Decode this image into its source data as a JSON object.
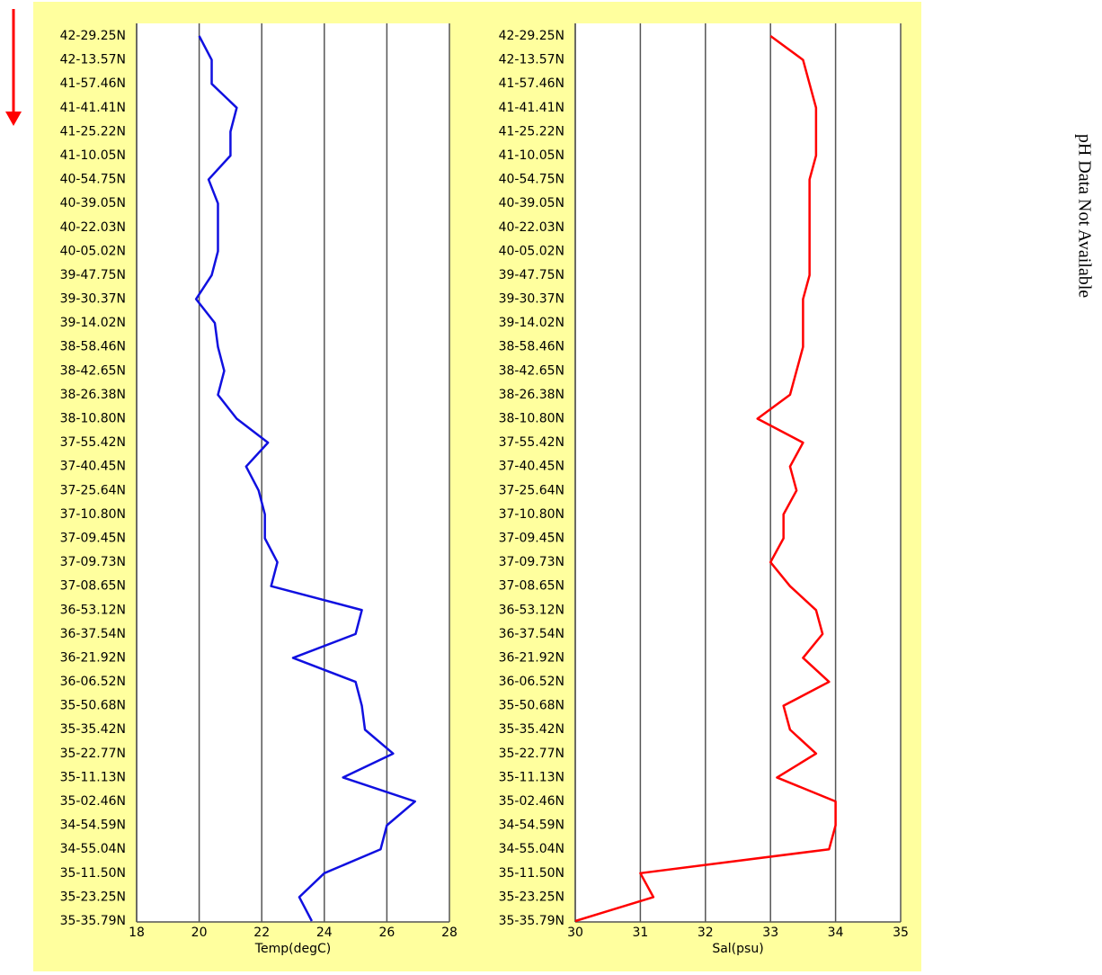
{
  "chart_data": [
    {
      "type": "line",
      "orientation": "horizontal",
      "x_label": "Temp(degC)",
      "color": "#1010e0",
      "categories": [
        "42-29.25N",
        "42-13.57N",
        "41-57.46N",
        "41-41.41N",
        "41-25.22N",
        "41-10.05N",
        "40-54.75N",
        "40-39.05N",
        "40-22.03N",
        "40-05.02N",
        "39-47.75N",
        "39-30.37N",
        "39-14.02N",
        "38-58.46N",
        "38-42.65N",
        "38-26.38N",
        "38-10.80N",
        "37-55.42N",
        "37-40.45N",
        "37-25.64N",
        "37-10.80N",
        "37-09.45N",
        "37-09.73N",
        "37-08.65N",
        "36-53.12N",
        "36-37.54N",
        "36-21.92N",
        "36-06.52N",
        "35-50.68N",
        "35-35.42N",
        "35-22.77N",
        "35-11.13N",
        "35-02.46N",
        "34-54.59N",
        "34-55.04N",
        "35-11.50N",
        "35-23.25N",
        "35-35.79N"
      ],
      "values": [
        20.0,
        20.4,
        20.4,
        21.2,
        21.0,
        21.0,
        20.3,
        20.6,
        20.6,
        20.6,
        20.4,
        19.9,
        20.5,
        20.6,
        20.8,
        20.6,
        21.2,
        22.2,
        21.5,
        21.9,
        22.1,
        22.1,
        22.5,
        22.3,
        25.2,
        25.0,
        23.0,
        25.0,
        25.2,
        25.3,
        26.2,
        24.6,
        26.9,
        26.0,
        25.8,
        24.0,
        23.2,
        23.6
      ],
      "xlim": [
        18,
        28
      ],
      "xticks": [
        18,
        20,
        22,
        24,
        26,
        28
      ],
      "grid": true
    },
    {
      "type": "line",
      "orientation": "horizontal",
      "x_label": "Sal(psu)",
      "color": "#ff0000",
      "categories": [
        "42-29.25N",
        "42-13.57N",
        "41-57.46N",
        "41-41.41N",
        "41-25.22N",
        "41-10.05N",
        "40-54.75N",
        "40-39.05N",
        "40-22.03N",
        "40-05.02N",
        "39-47.75N",
        "39-30.37N",
        "39-14.02N",
        "38-58.46N",
        "38-42.65N",
        "38-26.38N",
        "38-10.80N",
        "37-55.42N",
        "37-40.45N",
        "37-25.64N",
        "37-10.80N",
        "37-09.45N",
        "37-09.73N",
        "37-08.65N",
        "36-53.12N",
        "36-37.54N",
        "36-21.92N",
        "36-06.52N",
        "35-50.68N",
        "35-35.42N",
        "35-22.77N",
        "35-11.13N",
        "35-02.46N",
        "34-54.59N",
        "34-55.04N",
        "35-11.50N",
        "35-23.25N",
        "35-35.79N"
      ],
      "values": [
        33.0,
        33.5,
        33.6,
        33.7,
        33.7,
        33.7,
        33.6,
        33.6,
        33.6,
        33.6,
        33.6,
        33.5,
        33.5,
        33.5,
        33.4,
        33.3,
        32.8,
        33.5,
        33.3,
        33.4,
        33.2,
        33.2,
        33.0,
        33.3,
        33.7,
        33.8,
        33.5,
        33.9,
        33.2,
        33.3,
        33.7,
        33.1,
        34.0,
        34.0,
        33.9,
        31.0,
        31.2,
        30.0
      ],
      "xlim": [
        30,
        35
      ],
      "xticks": [
        30,
        31,
        32,
        33,
        34,
        35
      ],
      "grid": true
    }
  ],
  "note": "pH Data Not Available"
}
